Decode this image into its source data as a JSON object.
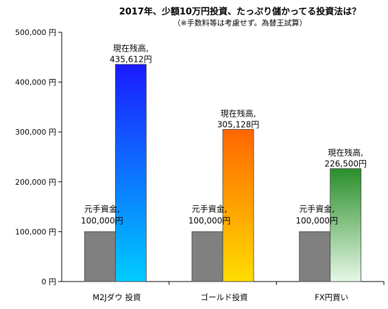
{
  "chart_data": {
    "type": "bar",
    "title": "2017年、少額10万円投資、たっぷり儲かってる投資法は？",
    "subtitle": "（※手数料等は考慮せず。為替王試算）",
    "categories": [
      "M2Jダウ 投資",
      "ゴールド投資",
      "FX円買い"
    ],
    "series": [
      {
        "name": "元手資金",
        "values": [
          100000,
          100000,
          100000
        ],
        "labels": [
          [
            "元手資金,",
            "100,000円"
          ],
          [
            "元手資金,",
            "100,000円"
          ],
          [
            "元手資金,",
            "100,000円"
          ]
        ]
      },
      {
        "name": "現在残高",
        "values": [
          435612,
          305128,
          226500
        ],
        "labels": [
          [
            "現在残高,",
            "435,612円"
          ],
          [
            "現在残高,",
            "305,128円"
          ],
          [
            "現在残高,",
            "226,500円"
          ]
        ]
      }
    ],
    "ylim": [
      0,
      500000
    ],
    "yticks": [
      0,
      100000,
      200000,
      300000,
      400000,
      500000
    ],
    "ytick_labels": [
      "0 円",
      "100,000 円",
      "200,000 円",
      "300,000 円",
      "400,000 円",
      "500,000 円"
    ],
    "xlabel": "",
    "ylabel": "",
    "grid": false,
    "colors": {
      "base": "#808080",
      "current": [
        [
          "#1a1aff",
          "#00ccff"
        ],
        [
          "#ff6600",
          "#ffdd00"
        ],
        [
          "#2a8f2a",
          "#e6f7e6"
        ]
      ]
    }
  }
}
